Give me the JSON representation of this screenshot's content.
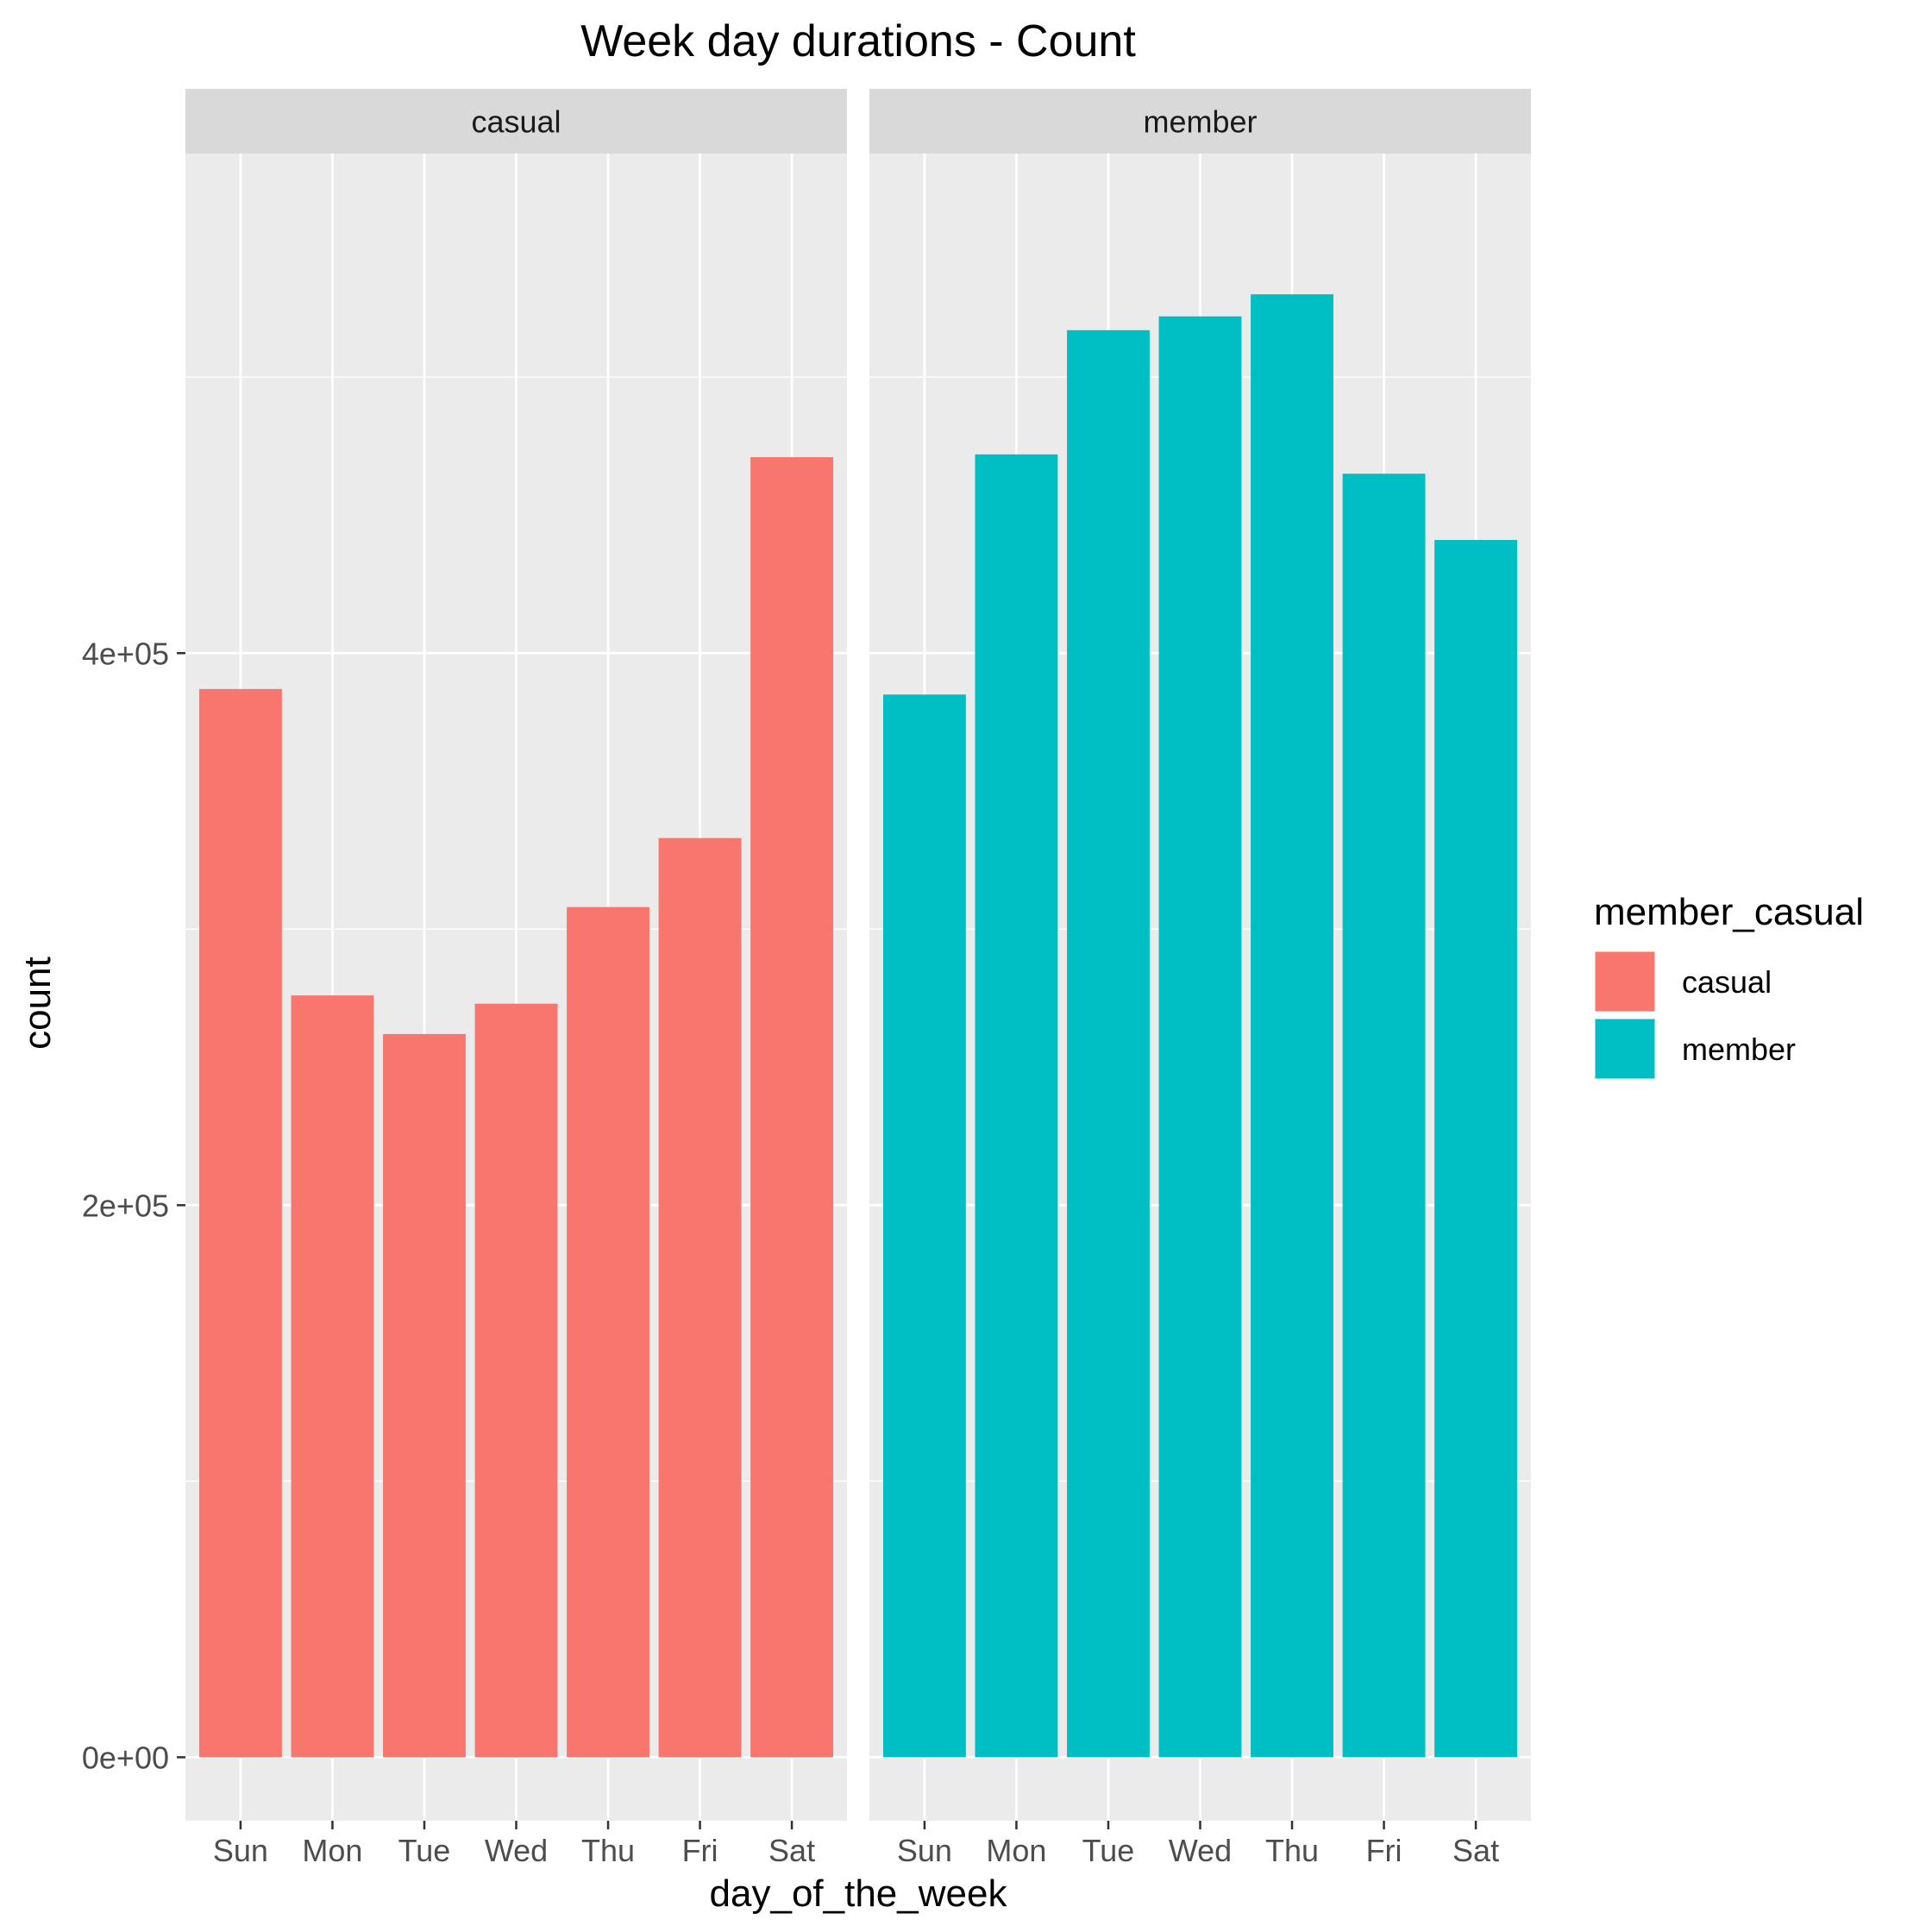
{
  "chart_data": {
    "type": "bar",
    "title": "Week day durations - Count",
    "xlabel": "day_of_the_week",
    "ylabel": "count",
    "categories": [
      "Sun",
      "Mon",
      "Tue",
      "Wed",
      "Thu",
      "Fri",
      "Sat"
    ],
    "ylim": [
      -23000,
      581000
    ],
    "yticks": [
      0,
      200000,
      400000
    ],
    "ytick_labels": [
      "0e+00",
      "2e+05",
      "4e+05"
    ],
    "grid": true,
    "facet_by": "member_casual",
    "panels": [
      {
        "strip": "casual",
        "color": "#F8766D",
        "values": [
          387000,
          276000,
          262000,
          273000,
          308000,
          333000,
          471000
        ]
      },
      {
        "strip": "member",
        "color": "#00BFC4",
        "values": [
          385000,
          472000,
          517000,
          522000,
          530000,
          465000,
          441000
        ]
      }
    ],
    "legend": {
      "title": "member_casual",
      "position": "right",
      "entries": [
        {
          "label": "casual",
          "color": "#F8766D"
        },
        {
          "label": "member",
          "color": "#00BFC4"
        }
      ]
    }
  }
}
